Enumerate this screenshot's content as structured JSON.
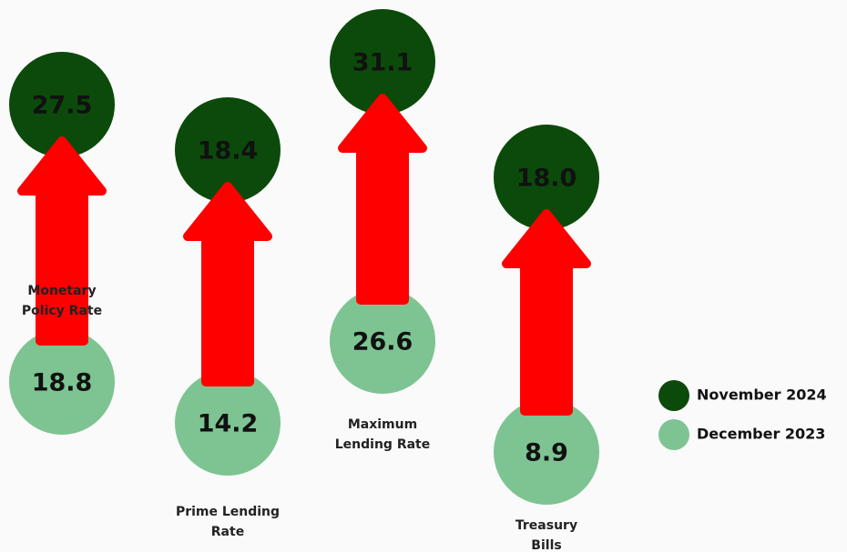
{
  "chart_data": {
    "type": "dumbbell",
    "categories": [
      "Monetary Policy Rate",
      "Prime Lending Rate",
      "Maximum Lending Rate",
      "Treasury Bills"
    ],
    "series": [
      {
        "name": "November 2024",
        "color": "#0b4a0b",
        "values": [
          27.5,
          18.4,
          31.1,
          18.0
        ],
        "value_labels": [
          "27.5",
          "18.4",
          "31.1",
          "18.0"
        ]
      },
      {
        "name": "December 2023",
        "color": "#7dc492",
        "values": [
          18.8,
          14.2,
          26.6,
          8.9
        ],
        "value_labels": [
          "18.8",
          "14.2",
          "26.6",
          "8.9"
        ]
      }
    ],
    "arrow_color": "#ff0000"
  }
}
